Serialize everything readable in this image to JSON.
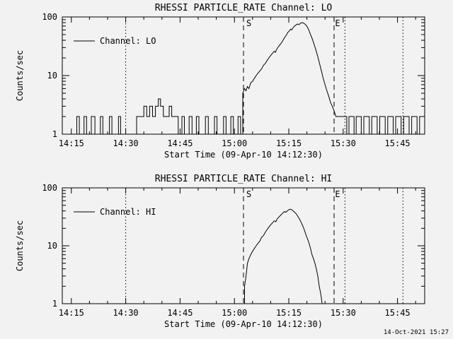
{
  "footer": {
    "timestamp": "14-Oct-2021 15:27"
  },
  "chart_data": [
    {
      "type": "line",
      "title": "RHESSI PARTICLE_RATE Channel: LO",
      "ylabel": "Counts/sec",
      "xlabel": "Start Time (09-Apr-10 14:12:30)",
      "yscale": "log",
      "ylim": [
        1,
        100
      ],
      "xlim_minutes": [
        12.5,
        112.5
      ],
      "xminor_step": 5,
      "grid": false,
      "legend": {
        "label": "Channel: LO",
        "position": "upper-left-inside"
      },
      "xticks": [
        {
          "t": 15,
          "label": "14:15"
        },
        {
          "t": 30,
          "label": "14:30"
        },
        {
          "t": 45,
          "label": "14:45"
        },
        {
          "t": 60,
          "label": "15:00"
        },
        {
          "t": 75,
          "label": "15:15"
        },
        {
          "t": 90,
          "label": "15:30"
        },
        {
          "t": 105,
          "label": "15:45"
        }
      ],
      "yticks": [
        1,
        10,
        100
      ],
      "vlines": [
        {
          "t": 30,
          "style": "dotted"
        },
        {
          "t": 62.5,
          "style": "dashed",
          "label": "S",
          "label_dx": 4
        },
        {
          "t": 87.5,
          "style": "dashed"
        },
        {
          "t": 90.5,
          "style": "dotted",
          "label": "E",
          "label_dx": -14
        },
        {
          "t": 106.5,
          "style": "dotted"
        }
      ],
      "series": [
        [
          12.5,
          1
        ],
        [
          16.5,
          1
        ],
        [
          16.5,
          2
        ],
        [
          17.2,
          2
        ],
        [
          17.2,
          1
        ],
        [
          18.5,
          1
        ],
        [
          18.5,
          2
        ],
        [
          19.2,
          2
        ],
        [
          19.2,
          1
        ],
        [
          20.5,
          1
        ],
        [
          20.5,
          2
        ],
        [
          21.5,
          2
        ],
        [
          21.5,
          1
        ],
        [
          23,
          1
        ],
        [
          23,
          2
        ],
        [
          23.7,
          2
        ],
        [
          23.7,
          1
        ],
        [
          25.5,
          1
        ],
        [
          25.5,
          2
        ],
        [
          26.2,
          2
        ],
        [
          26.2,
          1
        ],
        [
          28,
          1
        ],
        [
          28,
          2
        ],
        [
          28.6,
          2
        ],
        [
          28.6,
          1
        ],
        [
          33,
          1
        ],
        [
          33,
          2
        ],
        [
          35,
          2
        ],
        [
          35,
          3
        ],
        [
          35.8,
          3
        ],
        [
          35.8,
          2
        ],
        [
          36.6,
          2
        ],
        [
          36.6,
          3
        ],
        [
          37.4,
          3
        ],
        [
          37.4,
          2
        ],
        [
          38.2,
          2
        ],
        [
          38.2,
          3
        ],
        [
          39,
          3
        ],
        [
          39,
          4
        ],
        [
          39.6,
          4
        ],
        [
          39.6,
          3
        ],
        [
          40.4,
          3
        ],
        [
          40.4,
          2
        ],
        [
          42,
          2
        ],
        [
          42,
          3
        ],
        [
          42.7,
          3
        ],
        [
          42.7,
          2
        ],
        [
          44.5,
          2
        ],
        [
          44.5,
          1
        ],
        [
          45.5,
          1
        ],
        [
          45.5,
          2
        ],
        [
          46.2,
          2
        ],
        [
          46.2,
          1
        ],
        [
          47.5,
          1
        ],
        [
          47.5,
          2
        ],
        [
          48.3,
          2
        ],
        [
          48.3,
          1
        ],
        [
          49.5,
          1
        ],
        [
          49.5,
          2
        ],
        [
          50.2,
          2
        ],
        [
          50.2,
          1
        ],
        [
          52,
          1
        ],
        [
          52,
          2
        ],
        [
          52.8,
          2
        ],
        [
          52.8,
          1
        ],
        [
          54.5,
          1
        ],
        [
          54.5,
          2
        ],
        [
          55.2,
          2
        ],
        [
          55.2,
          1
        ],
        [
          57,
          1
        ],
        [
          57,
          2
        ],
        [
          57.7,
          2
        ],
        [
          57.7,
          1
        ],
        [
          59,
          1
        ],
        [
          59,
          2
        ],
        [
          59.7,
          2
        ],
        [
          59.7,
          1
        ],
        [
          61,
          1
        ],
        [
          61,
          2
        ],
        [
          61.7,
          2
        ],
        [
          61.7,
          1
        ],
        [
          62.3,
          1
        ],
        [
          62.3,
          5
        ],
        [
          62.8,
          6
        ],
        [
          63.2,
          5.5
        ],
        [
          63.6,
          6.5
        ],
        [
          64,
          6
        ],
        [
          64.5,
          7.5
        ],
        [
          65,
          8
        ],
        [
          65.5,
          9
        ],
        [
          66,
          10
        ],
        [
          66.5,
          11
        ],
        [
          67,
          12
        ],
        [
          67.5,
          13
        ],
        [
          68,
          15
        ],
        [
          68.5,
          16
        ],
        [
          69,
          18
        ],
        [
          69.5,
          20
        ],
        [
          70,
          22
        ],
        [
          70.5,
          24
        ],
        [
          71,
          26
        ],
        [
          71.3,
          25
        ],
        [
          71.8,
          29
        ],
        [
          72.3,
          32
        ],
        [
          72.8,
          35
        ],
        [
          73.2,
          38
        ],
        [
          73.6,
          42
        ],
        [
          74,
          46
        ],
        [
          74.4,
          50
        ],
        [
          74.8,
          55
        ],
        [
          75.2,
          58
        ],
        [
          75.5,
          62
        ],
        [
          75.8,
          60
        ],
        [
          76.2,
          66
        ],
        [
          76.6,
          70
        ],
        [
          77,
          73
        ],
        [
          77.4,
          76
        ],
        [
          77.8,
          74
        ],
        [
          78.2,
          78
        ],
        [
          78.6,
          80
        ],
        [
          79,
          79
        ],
        [
          79.4,
          76
        ],
        [
          79.8,
          72
        ],
        [
          80.2,
          66
        ],
        [
          80.6,
          58
        ],
        [
          81,
          50
        ],
        [
          81.5,
          42
        ],
        [
          82,
          34
        ],
        [
          82.5,
          27
        ],
        [
          83,
          21
        ],
        [
          83.5,
          16
        ],
        [
          84,
          12
        ],
        [
          84.5,
          9
        ],
        [
          85,
          7
        ],
        [
          85.5,
          5.5
        ],
        [
          86,
          4.5
        ],
        [
          86.5,
          3.5
        ],
        [
          87,
          3
        ],
        [
          87.5,
          2.5
        ],
        [
          88,
          2
        ],
        [
          91,
          2
        ],
        [
          91,
          1
        ],
        [
          91.6,
          1
        ],
        [
          91.6,
          2
        ],
        [
          93,
          2
        ],
        [
          93,
          1
        ],
        [
          93.6,
          1
        ],
        [
          93.6,
          2
        ],
        [
          95,
          2
        ],
        [
          95,
          1
        ],
        [
          95.7,
          1
        ],
        [
          95.7,
          2
        ],
        [
          97.2,
          2
        ],
        [
          97.2,
          1
        ],
        [
          97.9,
          1
        ],
        [
          97.9,
          2
        ],
        [
          99.4,
          2
        ],
        [
          99.4,
          1
        ],
        [
          100.1,
          1
        ],
        [
          100.1,
          2
        ],
        [
          101.6,
          2
        ],
        [
          101.6,
          1
        ],
        [
          102.3,
          1
        ],
        [
          102.3,
          2
        ],
        [
          103.8,
          2
        ],
        [
          103.8,
          1
        ],
        [
          104.5,
          1
        ],
        [
          104.5,
          2
        ],
        [
          106,
          2
        ],
        [
          106,
          1
        ],
        [
          106.7,
          1
        ],
        [
          106.7,
          2
        ],
        [
          108.2,
          2
        ],
        [
          108.2,
          1
        ],
        [
          108.9,
          1
        ],
        [
          108.9,
          2
        ],
        [
          110.4,
          2
        ],
        [
          110.4,
          1
        ],
        [
          111.1,
          1
        ],
        [
          111.1,
          2
        ],
        [
          112.5,
          2
        ]
      ]
    },
    {
      "type": "line",
      "title": "RHESSI PARTICLE_RATE Channel: HI",
      "ylabel": "Counts/sec",
      "xlabel": "Start Time (09-Apr-10 14:12:30)",
      "yscale": "log",
      "ylim": [
        1,
        100
      ],
      "xlim_minutes": [
        12.5,
        112.5
      ],
      "xminor_step": 5,
      "grid": false,
      "legend": {
        "label": "Channel: HI",
        "position": "upper-left-inside"
      },
      "xticks": [
        {
          "t": 15,
          "label": "14:15"
        },
        {
          "t": 30,
          "label": "14:30"
        },
        {
          "t": 45,
          "label": "14:45"
        },
        {
          "t": 60,
          "label": "15:00"
        },
        {
          "t": 75,
          "label": "15:15"
        },
        {
          "t": 90,
          "label": "15:30"
        },
        {
          "t": 105,
          "label": "15:45"
        }
      ],
      "yticks": [
        1,
        10,
        100
      ],
      "vlines": [
        {
          "t": 30,
          "style": "dotted"
        },
        {
          "t": 62.5,
          "style": "dashed",
          "label": "S",
          "label_dx": 4
        },
        {
          "t": 87.5,
          "style": "dashed"
        },
        {
          "t": 90.5,
          "style": "dotted",
          "label": "E",
          "label_dx": -14
        },
        {
          "t": 106.5,
          "style": "dotted"
        }
      ],
      "series": [
        [
          12.5,
          1
        ],
        [
          62.8,
          1
        ],
        [
          62.8,
          2
        ],
        [
          63.2,
          3
        ],
        [
          63.6,
          5
        ],
        [
          64,
          6
        ],
        [
          64.5,
          7
        ],
        [
          65,
          8
        ],
        [
          65.5,
          9
        ],
        [
          66,
          10
        ],
        [
          66.5,
          11
        ],
        [
          67,
          12
        ],
        [
          67.5,
          14
        ],
        [
          68,
          15
        ],
        [
          68.5,
          17
        ],
        [
          69,
          19
        ],
        [
          69.5,
          21
        ],
        [
          70,
          23
        ],
        [
          70.5,
          25
        ],
        [
          71,
          27
        ],
        [
          71.4,
          26
        ],
        [
          71.8,
          29
        ],
        [
          72.2,
          31
        ],
        [
          72.6,
          33
        ],
        [
          73,
          35
        ],
        [
          73.4,
          37
        ],
        [
          73.8,
          39
        ],
        [
          74.2,
          38
        ],
        [
          74.6,
          40
        ],
        [
          75,
          42
        ],
        [
          75.4,
          43
        ],
        [
          75.8,
          42
        ],
        [
          76.2,
          40
        ],
        [
          76.6,
          38
        ],
        [
          77,
          36
        ],
        [
          77.4,
          33
        ],
        [
          77.8,
          30
        ],
        [
          78.2,
          27
        ],
        [
          78.6,
          24
        ],
        [
          79,
          21
        ],
        [
          79.4,
          18
        ],
        [
          79.8,
          15
        ],
        [
          80.2,
          13
        ],
        [
          80.6,
          11
        ],
        [
          81,
          9
        ],
        [
          81.4,
          7
        ],
        [
          81.8,
          6
        ],
        [
          82.2,
          5
        ],
        [
          82.6,
          4
        ],
        [
          83,
          3
        ],
        [
          83.4,
          2
        ],
        [
          83.8,
          1.5
        ],
        [
          84.2,
          1
        ],
        [
          112.5,
          1
        ]
      ]
    }
  ]
}
